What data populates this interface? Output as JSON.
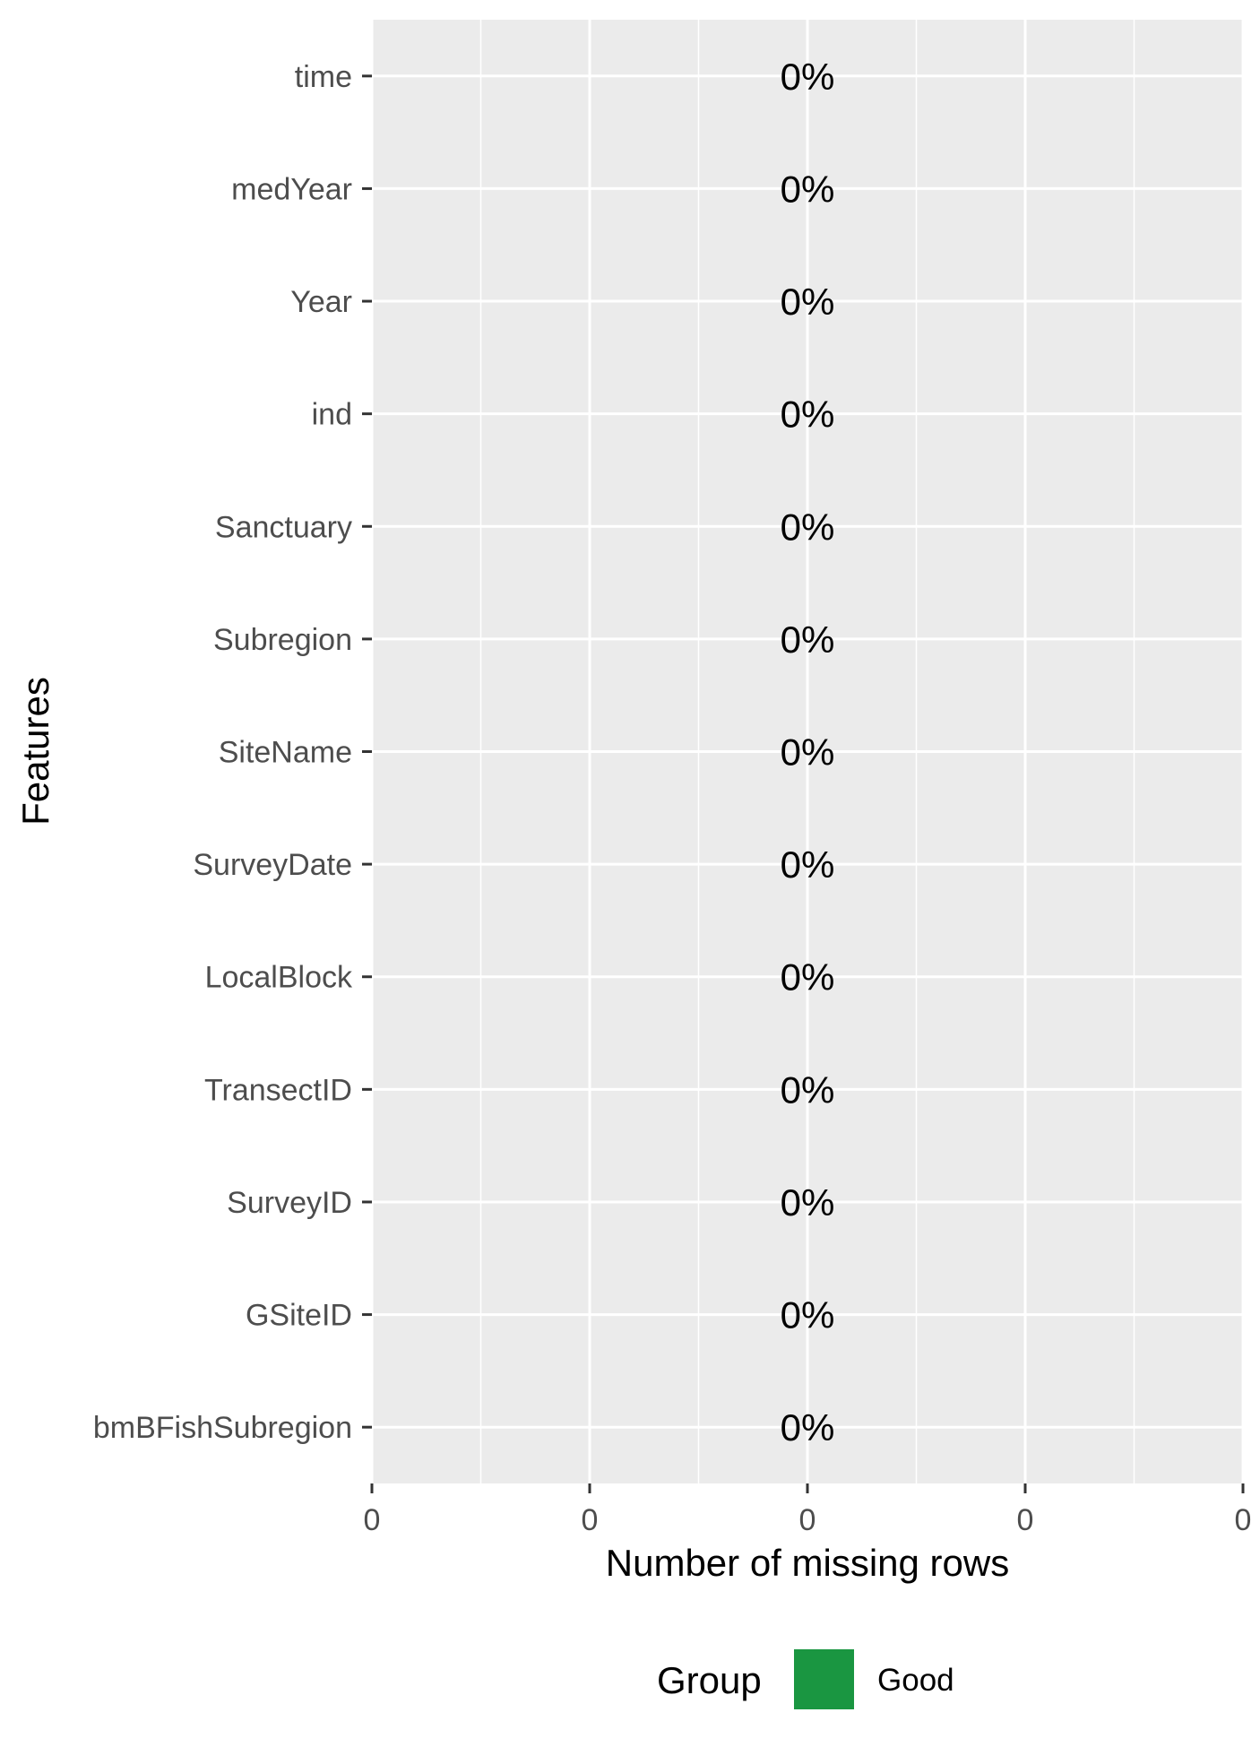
{
  "chart_data": {
    "type": "bar",
    "orientation": "horizontal",
    "xlabel": "Number of missing rows",
    "ylabel": "Features",
    "categories": [
      "time",
      "medYear",
      "Year",
      "ind",
      "Sanctuary",
      "Subregion",
      "SiteName",
      "SurveyDate",
      "LocalBlock",
      "TransectID",
      "SurveyID",
      "GSiteID",
      "bmBFishSubregion"
    ],
    "values": [
      0,
      0,
      0,
      0,
      0,
      0,
      0,
      0,
      0,
      0,
      0,
      0,
      0
    ],
    "value_labels": [
      "0%",
      "0%",
      "0%",
      "0%",
      "0%",
      "0%",
      "0%",
      "0%",
      "0%",
      "0%",
      "0%",
      "0%",
      "0%"
    ],
    "groups": [
      "Good",
      "Good",
      "Good",
      "Good",
      "Good",
      "Good",
      "Good",
      "Good",
      "Good",
      "Good",
      "Good",
      "Good",
      "Good"
    ],
    "x_tick_labels": [
      "0",
      "0",
      "0",
      "0",
      "0"
    ],
    "grid": true,
    "panel_background": "#ebebeb",
    "gridline_color": "#ffffff",
    "legend": {
      "title": "Group",
      "placement": "bottom",
      "items": [
        {
          "label": "Good",
          "color": "#1a9641"
        }
      ]
    }
  }
}
